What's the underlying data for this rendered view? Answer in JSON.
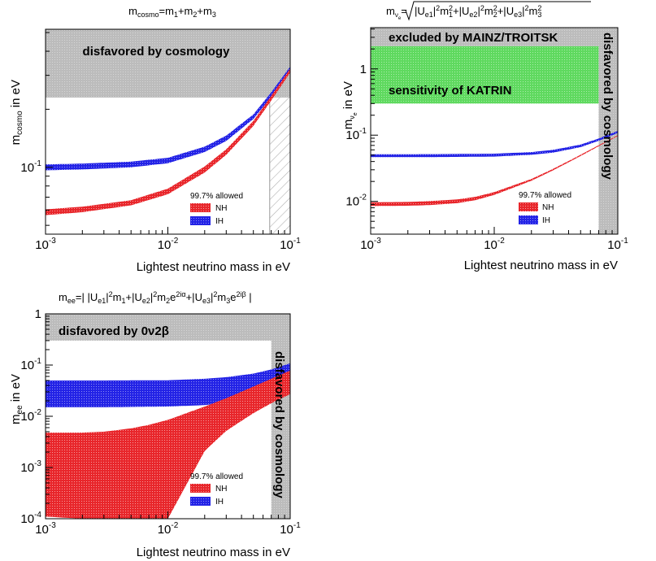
{
  "colors": {
    "nh": "#e8262b",
    "ih": "#2323e6",
    "excluded_gray": "#bcbcbc",
    "katrin_green": "#5fd95f",
    "hatch": "#b0b0b0"
  },
  "chart_data": [
    {
      "type": "area",
      "id": "cosmo",
      "title": "m_cosmo=m_1+m_2+m_3",
      "xlabel": "Lightest neutrino mass in eV",
      "ylabel": "m_cosmo in eV",
      "x_scale": "log",
      "y_scale": "log",
      "xlim": [
        0.001,
        0.1
      ],
      "ylim": [
        0.045,
        0.52
      ],
      "x_ticks": [
        {
          "v": 0.001,
          "label": "10^-3"
        },
        {
          "v": 0.01,
          "label": "10^-2"
        },
        {
          "v": 0.1,
          "label": "10^-1"
        }
      ],
      "y_ticks": [
        {
          "v": 0.1,
          "label": "10^-1"
        }
      ],
      "regions": [
        {
          "kind": "gray",
          "label": "disfavored by cosmology",
          "y_from": 0.23,
          "y_to": 0.52
        },
        {
          "kind": "hatch",
          "label": "",
          "x_from": 0.068,
          "x_to": 0.1
        }
      ],
      "legend": {
        "title": "99.7% allowed",
        "entries": [
          "NH",
          "IH"
        ]
      },
      "series": [
        {
          "name": "NH",
          "x": [
            0.001,
            0.002,
            0.005,
            0.01,
            0.02,
            0.03,
            0.05,
            0.07,
            0.1
          ],
          "low": [
            0.0565,
            0.0585,
            0.0635,
            0.0725,
            0.094,
            0.116,
            0.164,
            0.222,
            0.31
          ],
          "high": [
            0.0605,
            0.0625,
            0.0675,
            0.0775,
            0.101,
            0.124,
            0.174,
            0.235,
            0.325
          ]
        },
        {
          "name": "IH",
          "x": [
            0.001,
            0.002,
            0.005,
            0.01,
            0.02,
            0.03,
            0.05,
            0.07,
            0.1
          ],
          "low": [
            0.0965,
            0.0975,
            0.1,
            0.105,
            0.12,
            0.137,
            0.178,
            0.232,
            0.318
          ],
          "high": [
            0.1035,
            0.1045,
            0.107,
            0.112,
            0.128,
            0.146,
            0.188,
            0.245,
            0.333
          ]
        }
      ]
    },
    {
      "type": "area",
      "id": "beta",
      "title": "m_ν_e=√(|U_e1|²m_1²+|U_e2|²m_2²+|U_e3|²m_3²)",
      "xlabel": "Lightest neutrino mass in eV",
      "ylabel": "m_ν_e in eV",
      "x_scale": "log",
      "y_scale": "log",
      "xlim": [
        0.001,
        0.1
      ],
      "ylim": [
        0.0032,
        4.2
      ],
      "x_ticks": [
        {
          "v": 0.001,
          "label": "10^-3"
        },
        {
          "v": 0.01,
          "label": "10^-2"
        },
        {
          "v": 0.1,
          "label": "10^-1"
        }
      ],
      "y_ticks": [
        {
          "v": 0.01,
          "label": "10^-2"
        },
        {
          "v": 0.1,
          "label": "10^-1"
        },
        {
          "v": 1,
          "label": "1"
        }
      ],
      "regions": [
        {
          "kind": "gray",
          "label": "excluded by MAINZ/TROITSK",
          "y_from": 2.2,
          "y_to": 4.2
        },
        {
          "kind": "green",
          "label": "sensitivity of KATRIN",
          "y_from": 0.3,
          "y_to": 2.2,
          "x_to": 0.07
        },
        {
          "kind": "gray_vertical",
          "label": "disfavored by cosmology",
          "x_from": 0.07,
          "x_to": 0.1
        }
      ],
      "legend": {
        "title": "99.7% allowed",
        "entries": [
          "NH",
          "IH"
        ]
      },
      "series": [
        {
          "name": "NH",
          "x": [
            0.001,
            0.002,
            0.003,
            0.005,
            0.007,
            0.01,
            0.02,
            0.03,
            0.05,
            0.07,
            0.1
          ],
          "low": [
            0.0085,
            0.0086,
            0.0088,
            0.0094,
            0.0104,
            0.0125,
            0.0205,
            0.0295,
            0.0485,
            0.068,
            0.097
          ],
          "high": [
            0.0097,
            0.0098,
            0.0101,
            0.0107,
            0.0117,
            0.0138,
            0.0218,
            0.031,
            0.0505,
            0.0705,
            0.1
          ]
        },
        {
          "name": "IH",
          "x": [
            0.001,
            0.003,
            0.01,
            0.02,
            0.03,
            0.05,
            0.07,
            0.1
          ],
          "low": [
            0.0465,
            0.0466,
            0.0475,
            0.0505,
            0.0545,
            0.066,
            0.082,
            0.108
          ],
          "high": [
            0.0515,
            0.0516,
            0.0525,
            0.0555,
            0.06,
            0.072,
            0.089,
            0.116
          ]
        }
      ]
    },
    {
      "type": "area",
      "id": "ee",
      "title": "m_ee=| |U_e1|²m_1+|U_e2|²m_2e^2iα+|U_e3|²m_3e^2iβ |",
      "xlabel": "Lightest neutrino mass in eV",
      "ylabel": "m_ee in eV",
      "x_scale": "log",
      "y_scale": "log",
      "xlim": [
        0.001,
        0.1
      ],
      "ylim": [
        0.0001,
        1
      ],
      "x_ticks": [
        {
          "v": 0.001,
          "label": "10^-3"
        },
        {
          "v": 0.01,
          "label": "10^-2"
        },
        {
          "v": 0.1,
          "label": "10^-1"
        }
      ],
      "y_ticks": [
        {
          "v": 0.0001,
          "label": "10^-4"
        },
        {
          "v": 0.001,
          "label": "10^-3"
        },
        {
          "v": 0.01,
          "label": "10^-2"
        },
        {
          "v": 0.1,
          "label": "10^-1"
        },
        {
          "v": 1,
          "label": "1"
        }
      ],
      "regions": [
        {
          "kind": "gray",
          "label": "disfavored by 0ν2β",
          "y_from": 0.3,
          "y_to": 1
        },
        {
          "kind": "gray_vertical",
          "label": "disfavored by cosmology",
          "x_from": 0.07,
          "x_to": 0.1
        }
      ],
      "legend": {
        "title": "99.7% allowed",
        "entries": [
          "NH",
          "IH"
        ]
      },
      "series": [
        {
          "name": "NH",
          "x": [
            0.001,
            0.002,
            0.003,
            0.005,
            0.007,
            0.01,
            0.02,
            0.03,
            0.05,
            0.07,
            0.1
          ],
          "low": [
            0.00011,
            0.0001,
            0.0001,
            0.0001,
            0.0001,
            0.0001,
            0.0021,
            0.0052,
            0.0115,
            0.018,
            0.027
          ],
          "high": [
            0.0048,
            0.0048,
            0.005,
            0.0058,
            0.0068,
            0.0085,
            0.0155,
            0.0225,
            0.038,
            0.054,
            0.078
          ]
        },
        {
          "name": "IH",
          "x": [
            0.001,
            0.003,
            0.01,
            0.02,
            0.03,
            0.05,
            0.07,
            0.1
          ],
          "low": [
            0.015,
            0.015,
            0.0155,
            0.0165,
            0.0185,
            0.023,
            0.03,
            0.042
          ],
          "high": [
            0.05,
            0.05,
            0.0505,
            0.054,
            0.058,
            0.068,
            0.082,
            0.108
          ]
        }
      ]
    }
  ]
}
